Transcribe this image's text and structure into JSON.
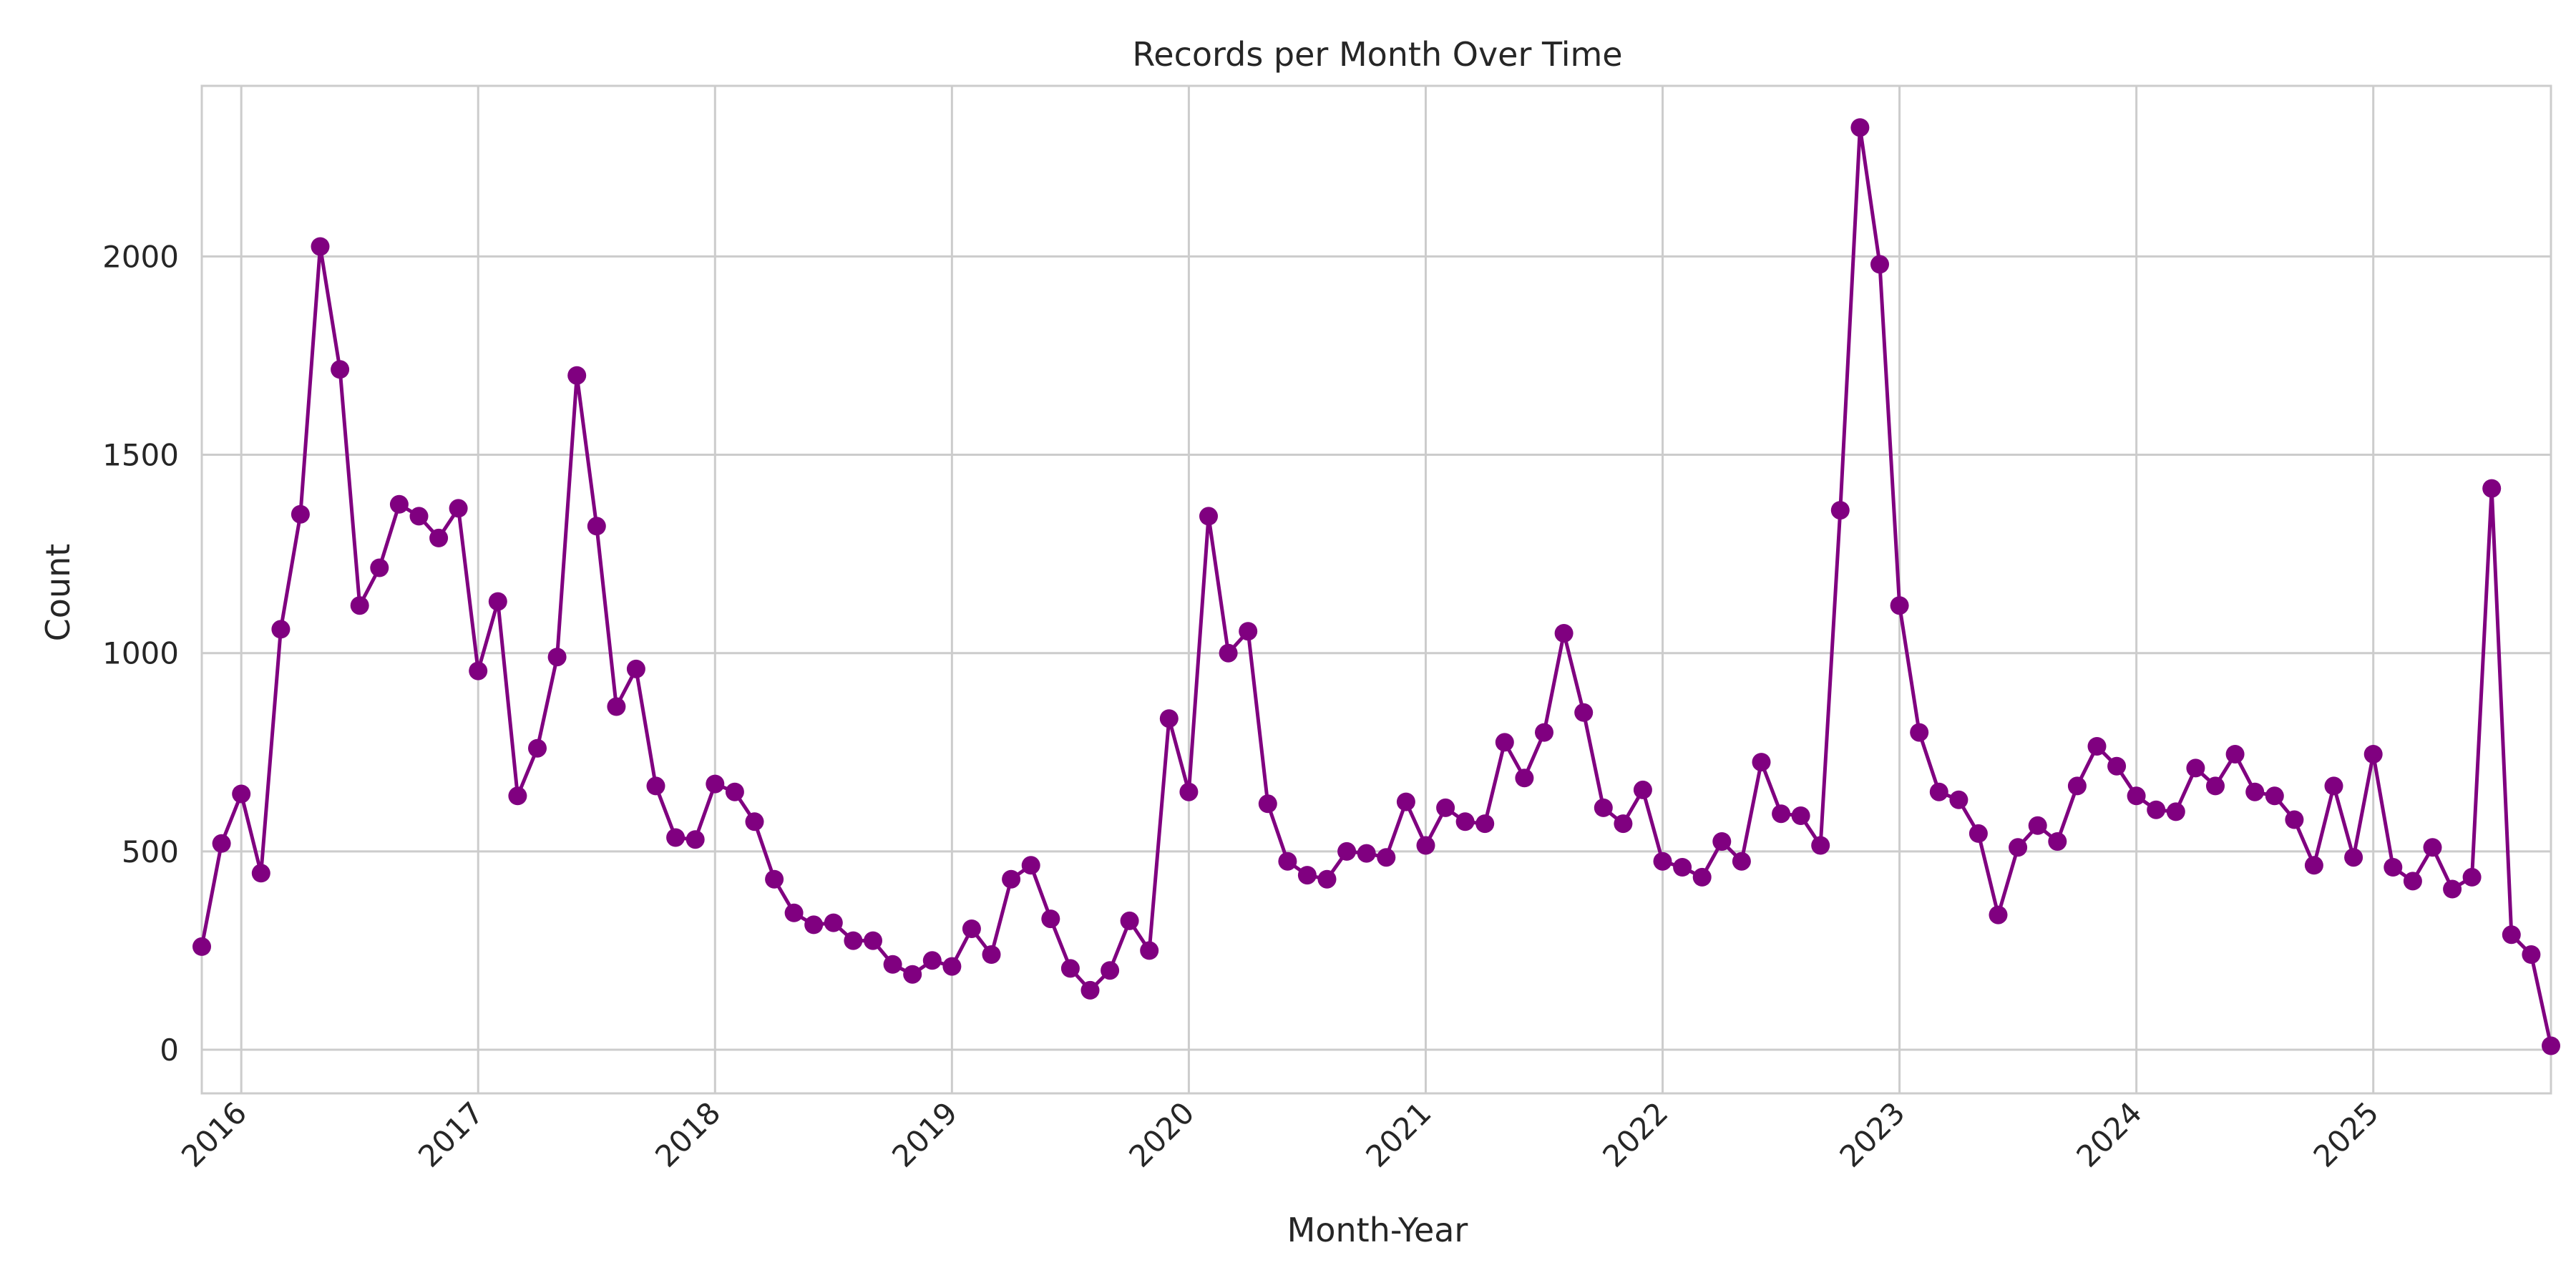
{
  "chart_data": {
    "type": "line",
    "title": "Records per Month Over Time",
    "xlabel": "Month-Year",
    "ylabel": "Count",
    "color": "#800080",
    "grid": true,
    "legend": "none",
    "x_tick_labels": [
      "2016",
      "2017",
      "2018",
      "2019",
      "2020",
      "2021",
      "2022",
      "2023",
      "2024",
      "2025"
    ],
    "y_tick_labels": [
      "0",
      "500",
      "1000",
      "1500",
      "2000"
    ],
    "y_ticks": [
      0,
      500,
      1000,
      1500,
      2000
    ],
    "ylim": [
      -110,
      2430
    ],
    "xlim": [
      "2015-11",
      "2025-10"
    ],
    "x": [
      "2015-11",
      "2015-12",
      "2016-01",
      "2016-02",
      "2016-03",
      "2016-04",
      "2016-05",
      "2016-06",
      "2016-07",
      "2016-08",
      "2016-09",
      "2016-10",
      "2016-11",
      "2016-12",
      "2017-01",
      "2017-02",
      "2017-03",
      "2017-04",
      "2017-05",
      "2017-06",
      "2017-07",
      "2017-08",
      "2017-09",
      "2017-10",
      "2017-11",
      "2017-12",
      "2018-01",
      "2018-02",
      "2018-03",
      "2018-04",
      "2018-05",
      "2018-06",
      "2018-07",
      "2018-08",
      "2018-09",
      "2018-10",
      "2018-11",
      "2018-12",
      "2019-01",
      "2019-02",
      "2019-03",
      "2019-04",
      "2019-05",
      "2019-06",
      "2019-07",
      "2019-08",
      "2019-09",
      "2019-10",
      "2019-11",
      "2019-12",
      "2020-01",
      "2020-02",
      "2020-03",
      "2020-04",
      "2020-05",
      "2020-06",
      "2020-07",
      "2020-08",
      "2020-09",
      "2020-10",
      "2020-11",
      "2020-12",
      "2021-01",
      "2021-02",
      "2021-03",
      "2021-04",
      "2021-05",
      "2021-06",
      "2021-07",
      "2021-08",
      "2021-09",
      "2021-10",
      "2021-11",
      "2021-12",
      "2022-01",
      "2022-02",
      "2022-03",
      "2022-04",
      "2022-05",
      "2022-06",
      "2022-07",
      "2022-08",
      "2022-09",
      "2022-10",
      "2022-11",
      "2022-12",
      "2023-01",
      "2023-02",
      "2023-03",
      "2023-04",
      "2023-05",
      "2023-06",
      "2023-07",
      "2023-08",
      "2023-09",
      "2023-10",
      "2023-11",
      "2023-12",
      "2024-01",
      "2024-02",
      "2024-03",
      "2024-04",
      "2024-05",
      "2024-06",
      "2024-07",
      "2024-08",
      "2024-09",
      "2024-10",
      "2024-11",
      "2024-12",
      "2025-01",
      "2025-02",
      "2025-03",
      "2025-04",
      "2025-05",
      "2025-06",
      "2025-07",
      "2025-08",
      "2025-09",
      "2025-10"
    ],
    "values": [
      260,
      520,
      645,
      445,
      1060,
      1350,
      2025,
      1715,
      1120,
      1215,
      1375,
      1345,
      1290,
      1365,
      955,
      1130,
      640,
      760,
      990,
      1700,
      1320,
      865,
      960,
      665,
      535,
      530,
      670,
      650,
      575,
      430,
      345,
      315,
      320,
      275,
      275,
      215,
      190,
      225,
      210,
      305,
      240,
      430,
      465,
      330,
      205,
      150,
      200,
      325,
      250,
      835,
      650,
      1345,
      1000,
      1055,
      620,
      475,
      440,
      430,
      500,
      495,
      485,
      625,
      515,
      610,
      575,
      570,
      775,
      685,
      800,
      1050,
      850,
      610,
      570,
      655,
      475,
      460,
      435,
      525,
      475,
      725,
      595,
      590,
      515,
      1360,
      2325,
      1980,
      1120,
      800,
      650,
      630,
      545,
      340,
      510,
      565,
      525,
      665,
      765,
      715,
      640,
      605,
      600,
      710,
      665,
      745,
      650,
      640,
      580,
      465,
      665,
      485,
      745,
      460,
      425,
      510,
      405,
      435,
      1415,
      290,
      240,
      10
    ]
  }
}
